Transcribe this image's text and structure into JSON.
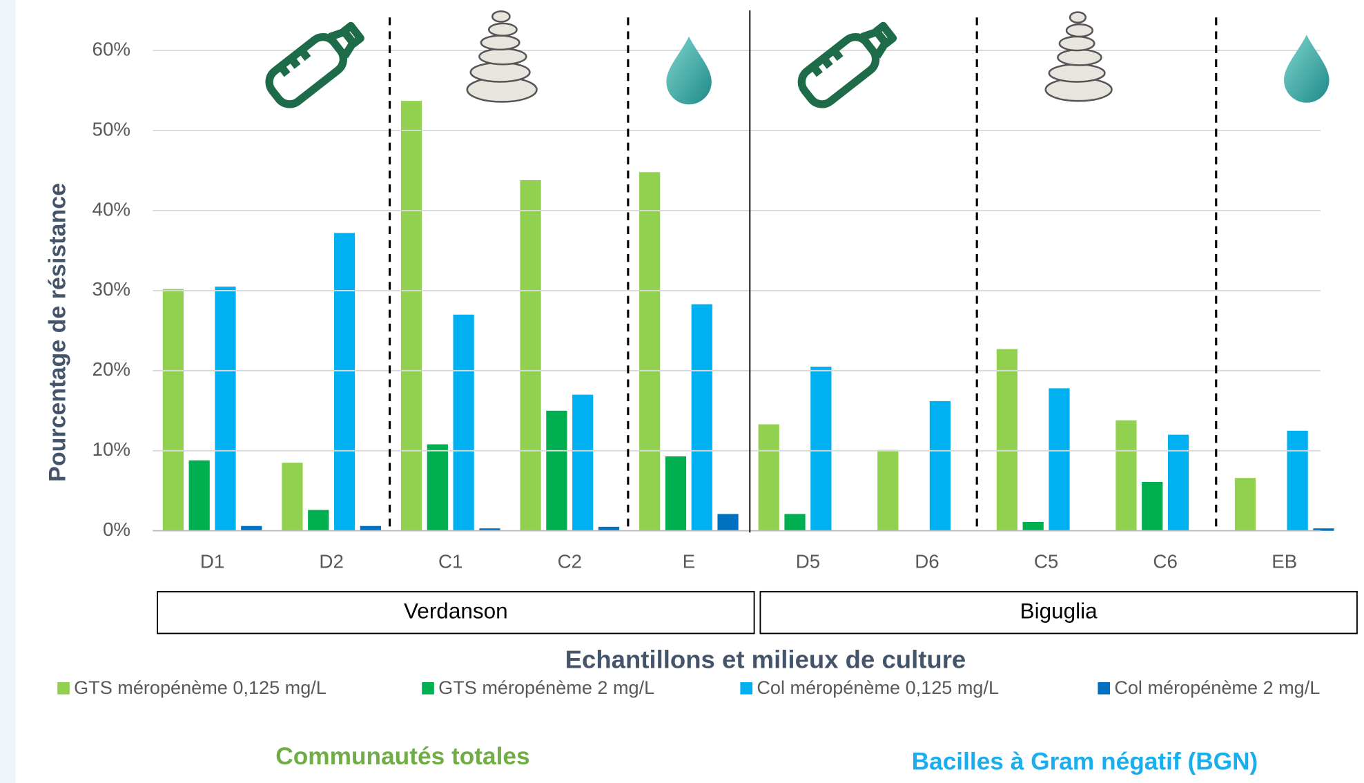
{
  "chart_data": {
    "type": "bar",
    "y_label": "Pourcentage de résistance",
    "x_label": "Echantillons et milieux de culture",
    "categories": [
      "D1",
      "D2",
      "C1",
      "C2",
      "E",
      "D5",
      "D6",
      "C5",
      "C6",
      "EB"
    ],
    "groups": [
      {
        "label": "Verdanson"
      },
      {
        "label": "Biguglia"
      }
    ],
    "series": [
      {
        "name": "GTS méropénème 0,125 mg/L",
        "color": "#92d050",
        "values": [
          30.2,
          8.5,
          53.7,
          43.8,
          44.8,
          13.3,
          10.1,
          22.7,
          13.8,
          6.6
        ]
      },
      {
        "name": "GTS méropénème 2 mg/L",
        "color": "#00b050",
        "values": [
          8.8,
          2.6,
          10.8,
          15.0,
          9.3,
          2.1,
          0,
          1.1,
          6.1,
          0
        ]
      },
      {
        "name": "Col méropénème 0,125 mg/L",
        "color": "#00b0f0",
        "values": [
          30.5,
          37.2,
          27.0,
          17.0,
          28.3,
          20.5,
          16.2,
          17.8,
          12.0,
          12.5
        ]
      },
      {
        "name": "Col méropénème 2 mg/L",
        "color": "#0070c0",
        "values": [
          0.6,
          0.6,
          0.3,
          0.5,
          2.1,
          0,
          0,
          0,
          0,
          0.3
        ]
      }
    ],
    "ylim": [
      0,
      60
    ],
    "yticks": [
      {
        "value": 0,
        "label": "0%"
      },
      {
        "value": 10,
        "label": "10%"
      },
      {
        "value": 20,
        "label": "20%"
      },
      {
        "value": 30,
        "label": "30%"
      },
      {
        "value": 40,
        "label": "40%"
      },
      {
        "value": 50,
        "label": "50%"
      },
      {
        "value": 60,
        "label": "60%"
      }
    ],
    "grid": true,
    "legend": "bottom",
    "annotations": [
      {
        "text": "Communautés totales",
        "color": "#70ad47"
      },
      {
        "text": "Bacilles à Gram négatif (BGN)",
        "color": "#19aef0"
      }
    ]
  }
}
